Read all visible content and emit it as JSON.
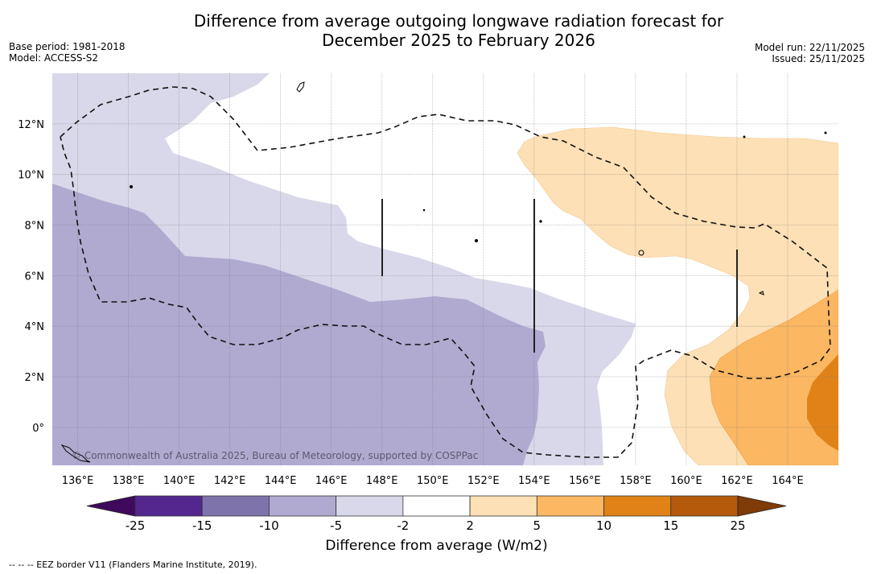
{
  "header": {
    "title_line1": "Difference from average outgoing longwave radiation forecast for",
    "title_line2": "December 2025 to February 2026",
    "base_period": "Base period: 1981-2018",
    "model": "Model: ACCESS-S2",
    "model_run": "Model run: 22/11/2025",
    "issued": "Issued: 25/11/2025"
  },
  "map": {
    "copyright": "© Commonwealth of Australia 2025, Bureau of Meteorology, supported by COSPPac",
    "lon_range": [
      135,
      166
    ],
    "lat_range": [
      -1.5,
      14
    ],
    "lon_ticks": [
      "136°E",
      "138°E",
      "140°E",
      "142°E",
      "144°E",
      "146°E",
      "148°E",
      "150°E",
      "152°E",
      "154°E",
      "156°E",
      "158°E",
      "160°E",
      "162°E",
      "164°E"
    ],
    "lon_tick_values": [
      136,
      138,
      140,
      142,
      144,
      146,
      148,
      150,
      152,
      154,
      156,
      158,
      160,
      162,
      164
    ],
    "lat_ticks": [
      "12°N",
      "10°N",
      "8°N",
      "6°N",
      "4°N",
      "2°N",
      "0°"
    ],
    "lat_tick_values": [
      12,
      10,
      8,
      6,
      4,
      2,
      0
    ],
    "gridlines": true
  },
  "colorbar": {
    "label": "Difference from average (W/m2)",
    "ticks": [
      "-25",
      "-15",
      "-10",
      "-5",
      "-2",
      "2",
      "5",
      "10",
      "15",
      "25"
    ],
    "bins": [
      {
        "range": "< -25",
        "color": "#3f0a5e"
      },
      {
        "range": "-25 to -15",
        "color": "#54278f"
      },
      {
        "range": "-15 to -10",
        "color": "#7f73ab"
      },
      {
        "range": "-10 to -5",
        "color": "#b0aad1"
      },
      {
        "range": "-5 to -2",
        "color": "#d8d8ea"
      },
      {
        "range": "-2 to 2",
        "color": "#ffffff"
      },
      {
        "range": "2 to 5",
        "color": "#fde0b5"
      },
      {
        "range": "5 to 10",
        "color": "#fbb762"
      },
      {
        "range": "10 to 15",
        "color": "#e08218"
      },
      {
        "range": "15 to 25",
        "color": "#b45a0a"
      },
      {
        "range": "> 25",
        "color": "#7f3b08"
      }
    ]
  },
  "footer": {
    "legend_text": "--  --  -- EEZ border V11 (Flanders Marine Institute, 2019)."
  }
}
